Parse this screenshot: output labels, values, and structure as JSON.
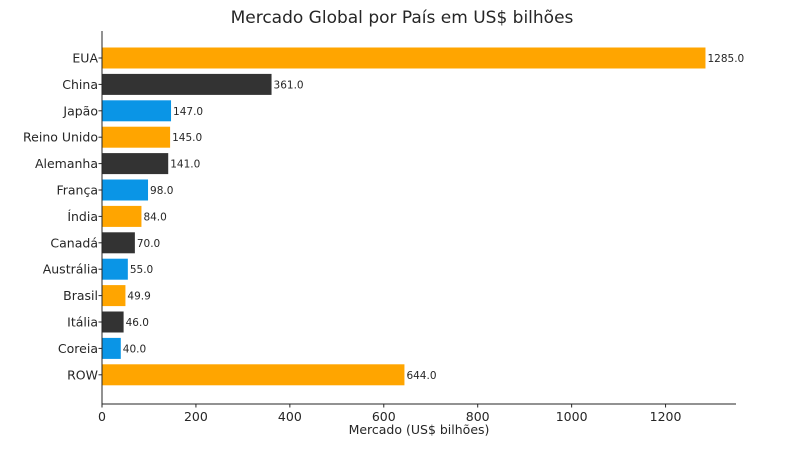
{
  "chart_data": {
    "type": "bar",
    "orientation": "horizontal",
    "title": "Mercado Global por País em US$ bilhões",
    "xlabel": "Mercado (US$ bilhões)",
    "ylabel": "",
    "xlim": [
      0,
      1350
    ],
    "xticks": [
      0,
      200,
      400,
      600,
      800,
      1000,
      1200
    ],
    "grid": false,
    "categories": [
      "EUA",
      "China",
      "Japão",
      "Reino Unido",
      "Alemanha",
      "França",
      "Índia",
      "Canadá",
      "Austrália",
      "Brasil",
      "Itália",
      "Coreia",
      "ROW"
    ],
    "values": [
      1285.0,
      361.0,
      147.0,
      145.0,
      141.0,
      98.0,
      84.0,
      70.0,
      55.0,
      49.9,
      46.0,
      40.0,
      644.0
    ],
    "value_labels": [
      "1285.0",
      "361.0",
      "147.0",
      "145.0",
      "141.0",
      "98.0",
      "84.0",
      "70.0",
      "55.0",
      "49.9",
      "46.0",
      "40.0",
      "644.0"
    ],
    "colors": [
      "#FFA500",
      "#333333",
      "#0A95E6"
    ]
  }
}
